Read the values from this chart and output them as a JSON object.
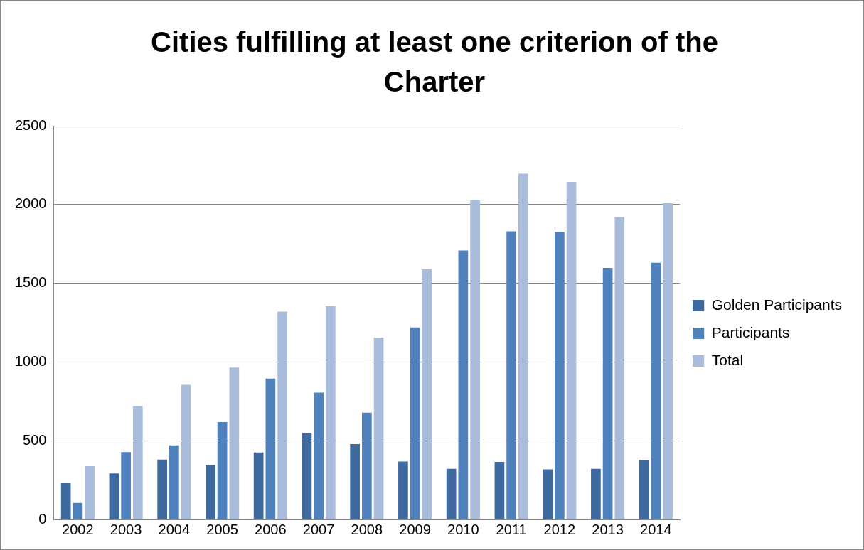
{
  "chart_data": {
    "type": "bar",
    "title": "Cities fulfilling at least one criterion of the Charter",
    "categories": [
      "2002",
      "2003",
      "2004",
      "2005",
      "2006",
      "2007",
      "2008",
      "2009",
      "2010",
      "2011",
      "2012",
      "2013",
      "2014"
    ],
    "series": [
      {
        "name": "Golden Participants",
        "color": "#3e6aa0",
        "values": [
          230,
          292,
          380,
          345,
          425,
          550,
          478,
          368,
          322,
          365,
          318,
          322,
          378
        ]
      },
      {
        "name": "Participants",
        "color": "#4f81bd",
        "values": [
          105,
          428,
          470,
          618,
          895,
          805,
          678,
          1220,
          1708,
          1830,
          1825,
          1598,
          1630
        ]
      },
      {
        "name": "Total",
        "color": "#a9bcdc",
        "values": [
          338,
          720,
          855,
          965,
          1320,
          1355,
          1155,
          1588,
          2030,
          2195,
          2143,
          1920,
          2008
        ]
      }
    ],
    "ylim": [
      0,
      2500
    ],
    "yticks": [
      0,
      500,
      1000,
      1500,
      2000,
      2500
    ],
    "grid": "y",
    "legend": "right"
  }
}
